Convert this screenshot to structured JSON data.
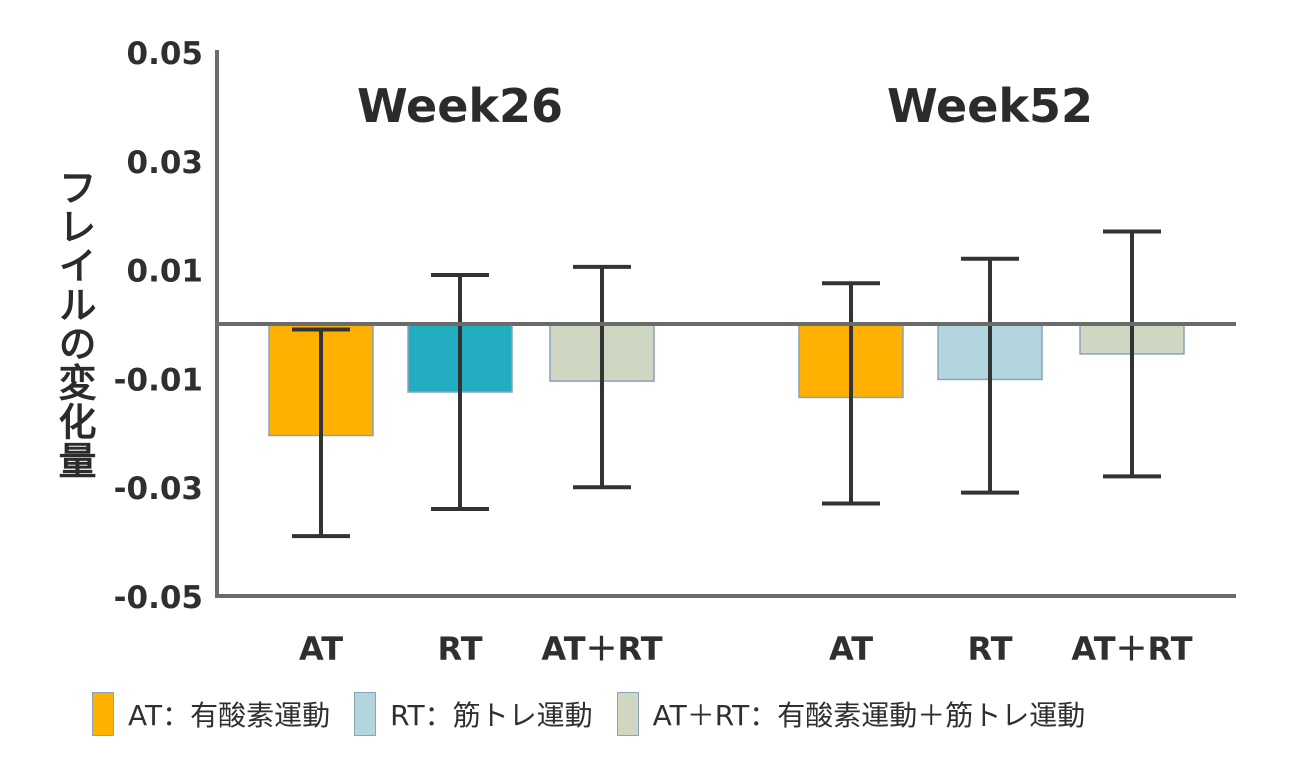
{
  "chart_data": {
    "type": "bar",
    "ylabel": "フレイルの変化量",
    "ylim": [
      -0.05,
      0.05
    ],
    "yticks": [
      "0.05",
      "0.03",
      "0.01",
      "-0.01",
      "-0.03",
      "-0.05"
    ],
    "ytick_values": [
      0.05,
      0.03,
      0.01,
      -0.01,
      -0.03,
      -0.05
    ],
    "grid": false,
    "legend_position": "bottom",
    "groups": [
      {
        "title": "Week26",
        "bars": [
          {
            "category": "AT",
            "value": -0.0205,
            "err_low": -0.039,
            "err_high": -0.001,
            "color": "#ffb000"
          },
          {
            "category": "RT",
            "value": -0.0125,
            "err_low": -0.034,
            "err_high": 0.009,
            "color": "#22adc0"
          },
          {
            "category": "AT＋RT",
            "value": -0.0105,
            "err_low": -0.03,
            "err_high": 0.0105,
            "color": "#cfd6c2"
          }
        ]
      },
      {
        "title": "Week52",
        "bars": [
          {
            "category": "AT",
            "value": -0.0135,
            "err_low": -0.033,
            "err_high": 0.0075,
            "color": "#ffb000"
          },
          {
            "category": "RT",
            "value": -0.0102,
            "err_low": -0.031,
            "err_high": 0.012,
            "color": "#b3d6de"
          },
          {
            "category": "AT＋RT",
            "value": -0.0055,
            "err_low": -0.028,
            "err_high": 0.017,
            "color": "#cfd6c2"
          }
        ]
      }
    ],
    "legend": [
      {
        "label": "AT：有酸素運動",
        "color": "#ffb000"
      },
      {
        "label": "RT：筋トレ運動",
        "color": "#b3d6de"
      },
      {
        "label": "AT＋RT：有酸素運動＋筋トレ運動",
        "color": "#cfd6c2"
      }
    ]
  }
}
